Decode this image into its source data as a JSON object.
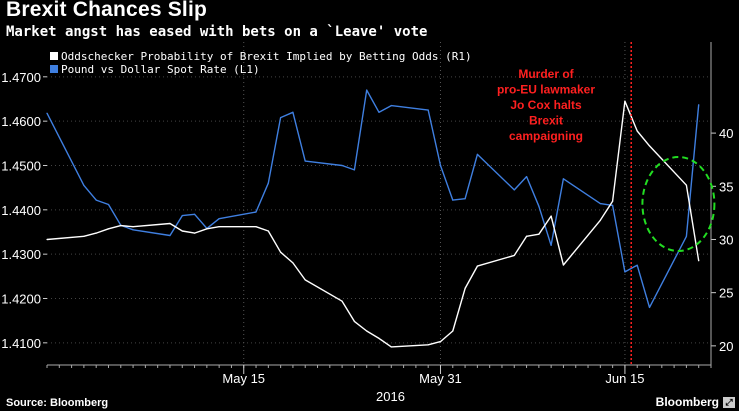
{
  "header": {
    "title": "Brexit Chances Slip",
    "subtitle": "Market angst has eased with bets on a `Leave' vote"
  },
  "footer": {
    "source": "Source: Bloomberg",
    "brand": "Bloomberg",
    "expand_icon": "expand-icon"
  },
  "colors": {
    "background": "#000000",
    "pound_line": "#3f7fe0",
    "odds_line": "#ffffff",
    "annotation": "#ff2020",
    "highlight_circle": "#22dd22"
  },
  "chart_data": {
    "type": "line",
    "title": "",
    "xlabel": "2016",
    "ylabel_left": "",
    "ylabel_right": "",
    "x_tick_labels": [
      "May 15",
      "May 31",
      "Jun 15"
    ],
    "year_label": "2016",
    "left_axis": {
      "ylim": [
        1.405,
        1.4765
      ],
      "ticks": [
        "1.4100",
        "1.4200",
        "1.4300",
        "1.4400",
        "1.4500",
        "1.4600",
        "1.4700"
      ]
    },
    "right_axis": {
      "ylim": [
        18.2,
        48.0
      ],
      "ticks": [
        "20",
        "25",
        "30",
        "35",
        "40"
      ]
    },
    "x": [
      "2016-04-29",
      "2016-05-02",
      "2016-05-03",
      "2016-05-04",
      "2016-05-05",
      "2016-05-06",
      "2016-05-09",
      "2016-05-10",
      "2016-05-11",
      "2016-05-12",
      "2016-05-13",
      "2016-05-16",
      "2016-05-17",
      "2016-05-18",
      "2016-05-19",
      "2016-05-20",
      "2016-05-23",
      "2016-05-24",
      "2016-05-25",
      "2016-05-26",
      "2016-05-27",
      "2016-05-30",
      "2016-05-31",
      "2016-06-01",
      "2016-06-02",
      "2016-06-03",
      "2016-06-06",
      "2016-06-07",
      "2016-06-08",
      "2016-06-09",
      "2016-06-10",
      "2016-06-13",
      "2016-06-14",
      "2016-06-15",
      "2016-06-16",
      "2016-06-17",
      "2016-06-20",
      "2016-06-21"
    ],
    "series": [
      {
        "name": "Pound vs Dollar Spot Rate (L1)",
        "axis": "left",
        "color": "#3f7fe0",
        "values": [
          1.4618,
          1.4455,
          1.4422,
          1.4412,
          1.4365,
          1.4355,
          1.4342,
          1.4387,
          1.439,
          1.4358,
          1.438,
          1.4395,
          1.446,
          1.4608,
          1.462,
          1.451,
          1.45,
          1.449,
          1.467,
          1.462,
          1.4635,
          1.4625,
          1.45,
          1.4422,
          1.4425,
          1.4525,
          1.4445,
          1.4475,
          1.4408,
          1.432,
          1.447,
          1.4414,
          1.441,
          1.426,
          1.4275,
          1.418,
          1.434,
          1.4637
        ]
      },
      {
        "name": "Oddschecker Probability of Brexit Implied by Betting Odds (R1)",
        "axis": "right",
        "color": "#ffffff",
        "values": [
          30.0,
          30.3,
          30.6,
          31.0,
          31.3,
          31.2,
          31.5,
          30.8,
          30.6,
          31.0,
          31.2,
          31.2,
          30.8,
          28.8,
          27.8,
          26.2,
          24.2,
          22.3,
          21.4,
          20.7,
          19.9,
          20.1,
          20.4,
          21.4,
          25.4,
          27.5,
          28.5,
          30.3,
          30.5,
          32.2,
          27.6,
          31.8,
          33.6,
          43.0,
          40.2,
          38.8,
          35.1,
          28.0
        ]
      }
    ],
    "legend": {
      "position": "top-left",
      "entries": [
        "Oddschecker Probability of Brexit Implied by Betting Odds (R1)",
        "Pound vs Dollar Spot Rate (L1)"
      ]
    },
    "annotations": [
      {
        "text_lines": [
          "Murder of",
          "pro-EU lawmaker",
          "Jo Cox halts",
          "Brexit",
          "campaigning"
        ],
        "event_date": "2016-06-16",
        "marker": "vertical dotted line"
      }
    ],
    "highlight": {
      "shape": "dashed circle",
      "around_date": "2016-06-20"
    },
    "grid": true
  }
}
